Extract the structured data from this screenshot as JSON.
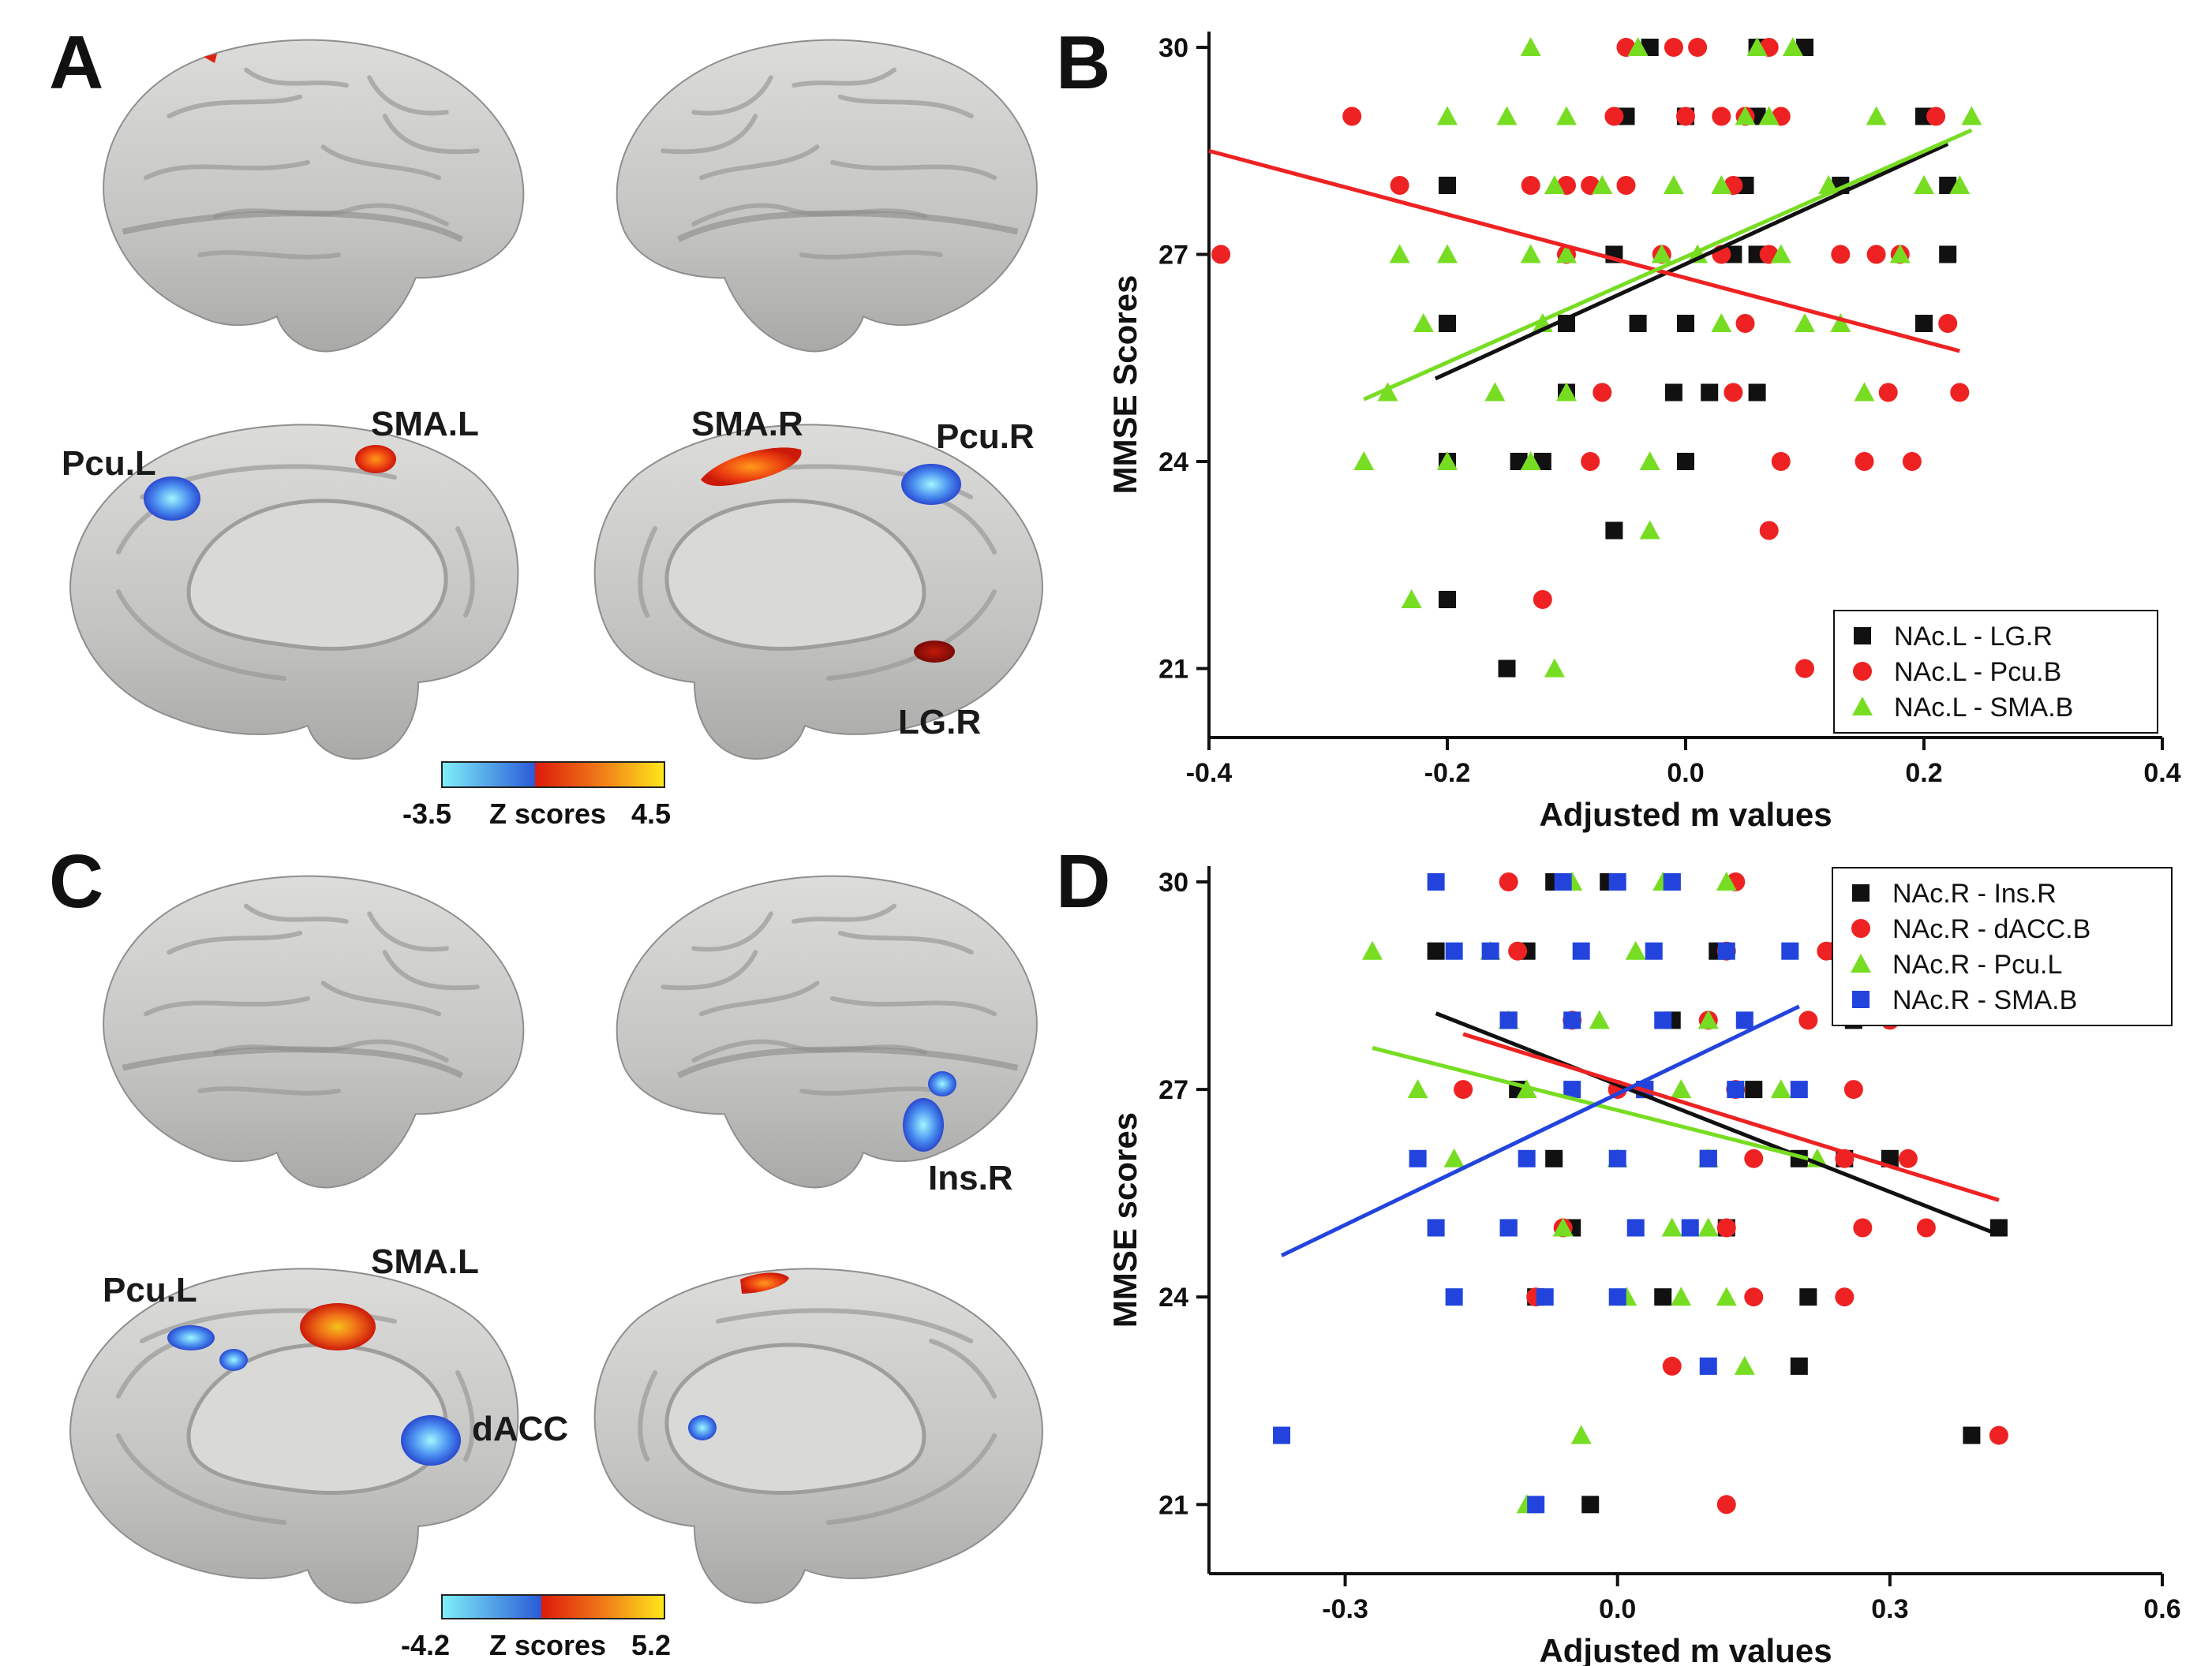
{
  "panels": {
    "A": {
      "letter": "A"
    },
    "B": {
      "letter": "B"
    },
    "C": {
      "letter": "C"
    },
    "D": {
      "letter": "D"
    }
  },
  "brainA": {
    "labels": {
      "pcu_l": "Pcu.L",
      "sma_l": "SMA.L",
      "sma_r": "SMA.R",
      "pcu_r": "Pcu.R",
      "lg_r": "LG.R"
    },
    "colorbar": {
      "min": "-3.5",
      "title": "Z scores",
      "max": "4.5"
    }
  },
  "brainC": {
    "labels": {
      "pcu_l": "Pcu.L",
      "sma_l": "SMA.L",
      "dacc": "dACC",
      "ins_r": "Ins.R"
    },
    "colorbar": {
      "min": "-4.2",
      "title": "Z scores",
      "max": "5.2"
    }
  },
  "colors": {
    "black": "#111111",
    "red": "#ee2222",
    "green": "#77dd22",
    "blue": "#2244dd",
    "brain": "#c8c8c6",
    "cool_low": "#7ff0f8",
    "cool_high": "#2a5ad8",
    "hot_low": "#dd1a0a",
    "hot_high": "#ffe81a"
  },
  "chart_data": [
    {
      "id": "B",
      "type": "scatter",
      "xlabel": "Adjusted m values",
      "ylabel": "MMSE Scores",
      "xlim": [
        -0.4,
        0.4
      ],
      "ylim": [
        20,
        30
      ],
      "xticks": [
        "-0.4",
        "-0.2",
        "0.0",
        "0.2",
        "0.4"
      ],
      "yticks": [
        "21",
        "24",
        "27",
        "30"
      ],
      "legend_position": "bottom-right",
      "series": [
        {
          "name": "NAc.L - LG.R",
          "color": "black",
          "marker": "square",
          "points": [
            [
              -0.03,
              30
            ],
            [
              0.06,
              30
            ],
            [
              0.1,
              30
            ],
            [
              -0.05,
              29
            ],
            [
              0.0,
              29
            ],
            [
              0.06,
              29
            ],
            [
              0.2,
              29
            ],
            [
              -0.2,
              28
            ],
            [
              0.05,
              28
            ],
            [
              0.13,
              28
            ],
            [
              0.22,
              28
            ],
            [
              -0.06,
              27
            ],
            [
              0.04,
              27
            ],
            [
              0.06,
              27
            ],
            [
              0.22,
              27
            ],
            [
              -0.2,
              26
            ],
            [
              -0.1,
              26
            ],
            [
              -0.04,
              26
            ],
            [
              0.0,
              26
            ],
            [
              0.2,
              26
            ],
            [
              -0.1,
              25
            ],
            [
              -0.01,
              25
            ],
            [
              0.02,
              25
            ],
            [
              0.06,
              25
            ],
            [
              -0.2,
              24
            ],
            [
              -0.14,
              24
            ],
            [
              -0.12,
              24
            ],
            [
              0.0,
              24
            ],
            [
              -0.06,
              23
            ],
            [
              -0.2,
              22
            ],
            [
              -0.15,
              21
            ]
          ],
          "fit": [
            [
              -0.21,
              25.2
            ],
            [
              0.22,
              28.6
            ]
          ]
        },
        {
          "name": "NAc.L - Pcu.B",
          "color": "red",
          "marker": "circle",
          "points": [
            [
              -0.05,
              30
            ],
            [
              -0.01,
              30
            ],
            [
              0.01,
              30
            ],
            [
              0.07,
              30
            ],
            [
              -0.28,
              29
            ],
            [
              -0.06,
              29
            ],
            [
              0.0,
              29
            ],
            [
              0.03,
              29
            ],
            [
              0.05,
              29
            ],
            [
              0.08,
              29
            ],
            [
              0.21,
              29
            ],
            [
              -0.24,
              28
            ],
            [
              -0.13,
              28
            ],
            [
              -0.1,
              28
            ],
            [
              -0.08,
              28
            ],
            [
              -0.05,
              28
            ],
            [
              0.04,
              28
            ],
            [
              -0.39,
              27
            ],
            [
              -0.1,
              27
            ],
            [
              -0.02,
              27
            ],
            [
              0.03,
              27
            ],
            [
              0.07,
              27
            ],
            [
              0.13,
              27
            ],
            [
              0.16,
              27
            ],
            [
              0.18,
              27
            ],
            [
              0.22,
              26
            ],
            [
              0.05,
              26
            ],
            [
              -0.07,
              25
            ],
            [
              0.04,
              25
            ],
            [
              0.17,
              25
            ],
            [
              0.23,
              25
            ],
            [
              -0.08,
              24
            ],
            [
              0.08,
              24
            ],
            [
              0.15,
              24
            ],
            [
              0.19,
              24
            ],
            [
              0.07,
              23
            ],
            [
              -0.12,
              22
            ],
            [
              0.1,
              21
            ]
          ],
          "fit": [
            [
              -0.4,
              28.5
            ],
            [
              0.23,
              25.6
            ]
          ]
        },
        {
          "name": "NAc.L - SMA.B",
          "color": "green",
          "marker": "triangle",
          "points": [
            [
              -0.13,
              30
            ],
            [
              -0.04,
              30
            ],
            [
              0.06,
              30
            ],
            [
              0.09,
              30
            ],
            [
              -0.2,
              29
            ],
            [
              -0.15,
              29
            ],
            [
              -0.1,
              29
            ],
            [
              0.05,
              29
            ],
            [
              0.07,
              29
            ],
            [
              0.16,
              29
            ],
            [
              0.24,
              29
            ],
            [
              -0.11,
              28
            ],
            [
              -0.07,
              28
            ],
            [
              -0.01,
              28
            ],
            [
              0.03,
              28
            ],
            [
              0.12,
              28
            ],
            [
              0.2,
              28
            ],
            [
              0.23,
              28
            ],
            [
              -0.24,
              27
            ],
            [
              -0.2,
              27
            ],
            [
              -0.13,
              27
            ],
            [
              -0.1,
              27
            ],
            [
              -0.02,
              27
            ],
            [
              0.01,
              27
            ],
            [
              0.08,
              27
            ],
            [
              0.18,
              27
            ],
            [
              -0.22,
              26
            ],
            [
              -0.12,
              26
            ],
            [
              0.03,
              26
            ],
            [
              0.1,
              26
            ],
            [
              0.13,
              26
            ],
            [
              -0.25,
              25
            ],
            [
              -0.16,
              25
            ],
            [
              -0.1,
              25
            ],
            [
              0.15,
              25
            ],
            [
              -0.27,
              24
            ],
            [
              -0.2,
              24
            ],
            [
              -0.13,
              24
            ],
            [
              -0.03,
              24
            ],
            [
              -0.03,
              23
            ],
            [
              -0.23,
              22
            ],
            [
              -0.11,
              21
            ]
          ],
          "fit": [
            [
              -0.27,
              24.9
            ],
            [
              0.24,
              28.8
            ]
          ]
        }
      ]
    },
    {
      "id": "D",
      "type": "scatter",
      "xlabel": "Adjusted m values",
      "ylabel": "MMSE scores",
      "xlim": [
        -0.45,
        0.6
      ],
      "ylim": [
        20,
        30
      ],
      "xticks": [
        "-0.3",
        "0.0",
        "0.3",
        "0.6"
      ],
      "yticks": [
        "21",
        "24",
        "27",
        "30"
      ],
      "legend_position": "top-right",
      "series": [
        {
          "name": "NAc.R - Ins.R",
          "color": "black",
          "marker": "square",
          "points": [
            [
              -0.07,
              30
            ],
            [
              -0.01,
              30
            ],
            [
              0.06,
              30
            ],
            [
              -0.2,
              29
            ],
            [
              -0.1,
              29
            ],
            [
              0.11,
              29
            ],
            [
              0.24,
              29
            ],
            [
              -0.12,
              28
            ],
            [
              0.06,
              28
            ],
            [
              0.26,
              28
            ],
            [
              -0.11,
              27
            ],
            [
              0.03,
              27
            ],
            [
              0.15,
              27
            ],
            [
              -0.07,
              26
            ],
            [
              0.1,
              26
            ],
            [
              0.2,
              26
            ],
            [
              0.25,
              26
            ],
            [
              0.3,
              26
            ],
            [
              -0.12,
              25
            ],
            [
              -0.05,
              25
            ],
            [
              0.12,
              25
            ],
            [
              0.42,
              25
            ],
            [
              -0.09,
              24
            ],
            [
              0.05,
              24
            ],
            [
              0.21,
              24
            ],
            [
              0.2,
              23
            ],
            [
              0.39,
              22
            ],
            [
              -0.03,
              21
            ]
          ],
          "fit": [
            [
              -0.2,
              28.1
            ],
            [
              0.42,
              24.9
            ]
          ]
        },
        {
          "name": "NAc.R - dACC.B",
          "color": "red",
          "marker": "circle",
          "points": [
            [
              -0.12,
              30
            ],
            [
              0.13,
              30
            ],
            [
              -0.11,
              29
            ],
            [
              0.12,
              29
            ],
            [
              0.23,
              29
            ],
            [
              -0.05,
              28
            ],
            [
              0.1,
              28
            ],
            [
              0.21,
              28
            ],
            [
              0.3,
              28
            ],
            [
              -0.17,
              27
            ],
            [
              0.0,
              27
            ],
            [
              0.13,
              27
            ],
            [
              0.26,
              27
            ],
            [
              0.15,
              26
            ],
            [
              0.25,
              26
            ],
            [
              0.32,
              26
            ],
            [
              -0.06,
              25
            ],
            [
              0.12,
              25
            ],
            [
              0.27,
              25
            ],
            [
              0.34,
              25
            ],
            [
              -0.09,
              24
            ],
            [
              0.15,
              24
            ],
            [
              0.25,
              24
            ],
            [
              0.06,
              23
            ],
            [
              0.42,
              22
            ],
            [
              0.12,
              21
            ]
          ],
          "fit": [
            [
              -0.17,
              27.8
            ],
            [
              0.42,
              25.4
            ]
          ]
        },
        {
          "name": "NAc.R - Pcu.L",
          "color": "green",
          "marker": "triangle",
          "points": [
            [
              -0.05,
              30
            ],
            [
              0.05,
              30
            ],
            [
              0.12,
              30
            ],
            [
              -0.27,
              29
            ],
            [
              -0.14,
              29
            ],
            [
              0.02,
              29
            ],
            [
              -0.12,
              28
            ],
            [
              -0.02,
              28
            ],
            [
              0.1,
              28
            ],
            [
              -0.22,
              27
            ],
            [
              -0.1,
              27
            ],
            [
              0.07,
              27
            ],
            [
              0.18,
              27
            ],
            [
              -0.18,
              26
            ],
            [
              0.0,
              26
            ],
            [
              0.1,
              26
            ],
            [
              0.22,
              26
            ],
            [
              -0.06,
              25
            ],
            [
              0.06,
              25
            ],
            [
              0.1,
              25
            ],
            [
              0.01,
              24
            ],
            [
              0.07,
              24
            ],
            [
              0.12,
              24
            ],
            [
              0.14,
              23
            ],
            [
              -0.04,
              22
            ],
            [
              -0.1,
              21
            ]
          ],
          "fit": [
            [
              -0.27,
              27.6
            ],
            [
              0.21,
              26.0
            ]
          ]
        },
        {
          "name": "NAc.R - SMA.B",
          "color": "blue",
          "marker": "square",
          "points": [
            [
              -0.2,
              30
            ],
            [
              -0.06,
              30
            ],
            [
              0.0,
              30
            ],
            [
              0.06,
              30
            ],
            [
              -0.18,
              29
            ],
            [
              -0.14,
              29
            ],
            [
              -0.04,
              29
            ],
            [
              0.04,
              29
            ],
            [
              0.12,
              29
            ],
            [
              0.19,
              29
            ],
            [
              -0.12,
              28
            ],
            [
              -0.05,
              28
            ],
            [
              0.05,
              28
            ],
            [
              0.14,
              28
            ],
            [
              -0.05,
              27
            ],
            [
              0.03,
              27
            ],
            [
              0.13,
              27
            ],
            [
              0.2,
              27
            ],
            [
              -0.22,
              26
            ],
            [
              -0.1,
              26
            ],
            [
              0.0,
              26
            ],
            [
              0.1,
              26
            ],
            [
              -0.2,
              25
            ],
            [
              -0.12,
              25
            ],
            [
              0.02,
              25
            ],
            [
              0.08,
              25
            ],
            [
              -0.18,
              24
            ],
            [
              -0.08,
              24
            ],
            [
              0.0,
              24
            ],
            [
              0.1,
              23
            ],
            [
              -0.37,
              22
            ],
            [
              -0.09,
              21
            ]
          ],
          "fit": [
            [
              -0.37,
              24.6
            ],
            [
              0.2,
              28.2
            ]
          ]
        }
      ]
    }
  ]
}
